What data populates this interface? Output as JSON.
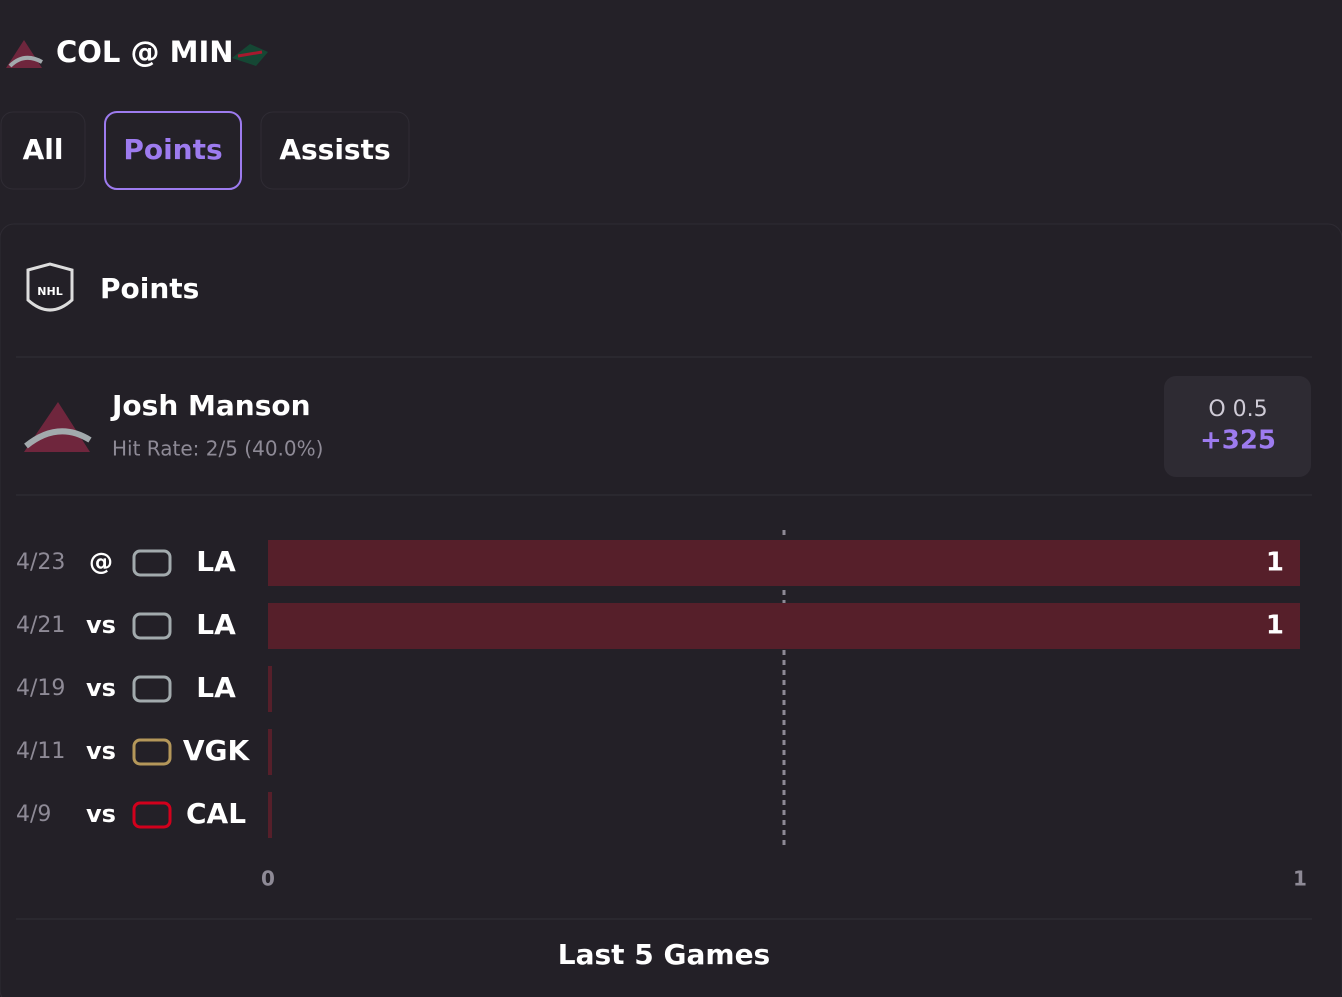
{
  "header": {
    "matchup": "COL @ MIN"
  },
  "tabs": [
    {
      "label": "All",
      "active": false
    },
    {
      "label": "Points",
      "active": true
    },
    {
      "label": "Assists",
      "active": false
    }
  ],
  "section": {
    "title": "Points"
  },
  "player": {
    "name": "Josh Manson",
    "hit_rate": "Hit Rate: 2/5 (40.0%)"
  },
  "prop": {
    "side": "O",
    "line": 0.5,
    "odds": "+325"
  },
  "chart": {
    "type": "bar",
    "orientation": "horizontal",
    "dates": [
      "4/23",
      "4/21",
      "4/19",
      "4/11",
      "4/9"
    ],
    "venues": [
      "@",
      "vs",
      "vs",
      "vs",
      "vs"
    ],
    "categories": [
      "LA",
      "LA",
      "LA",
      "VGK",
      "CAL"
    ],
    "values": [
      1,
      1,
      0,
      0,
      0
    ],
    "color": "#561f2a",
    "xlim": [
      0,
      1
    ],
    "xticks": [
      0,
      1
    ]
  },
  "footer": {
    "label": "Last 5 Games"
  }
}
